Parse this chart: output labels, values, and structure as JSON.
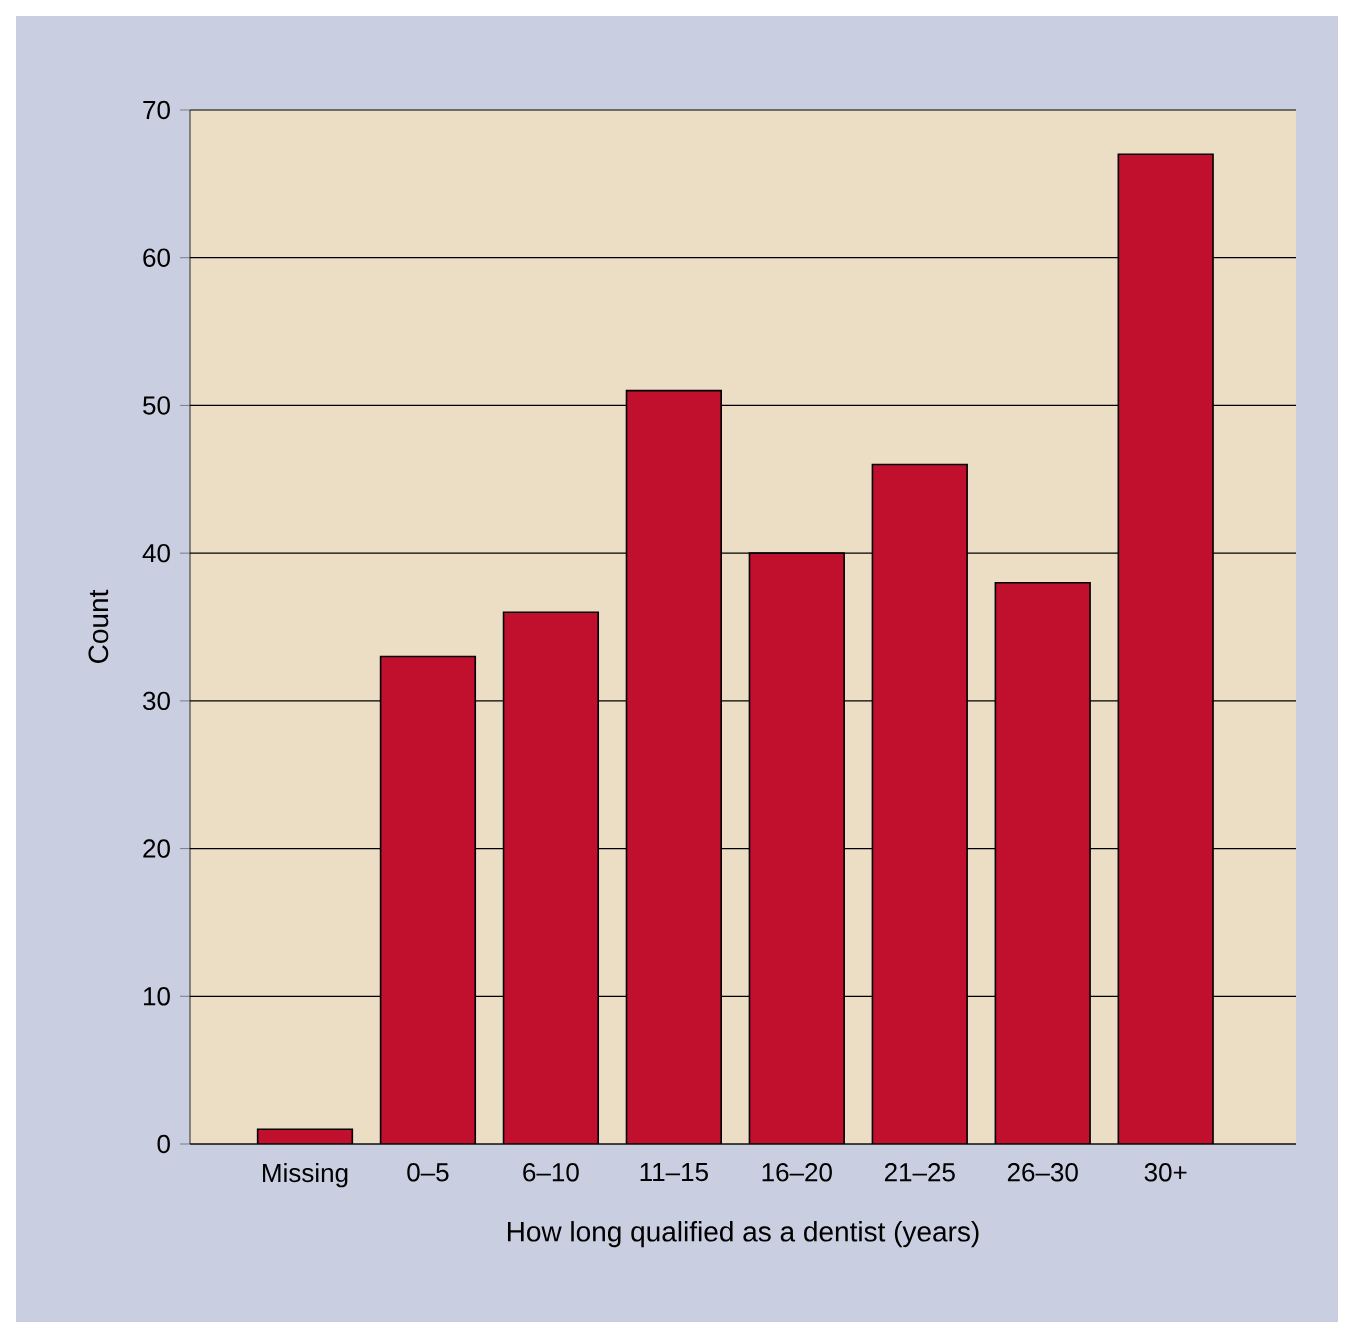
{
  "chart_data": {
    "type": "bar",
    "xlabel": "How long qualified as a dentist (years)",
    "ylabel": "Count",
    "categories": [
      "Missing",
      "0–5",
      "6–10",
      "11–15",
      "16–20",
      "21–25",
      "26–30",
      "30+"
    ],
    "values": [
      1,
      33,
      36,
      51,
      40,
      46,
      38,
      67
    ],
    "color": "#c0102e",
    "ylim": [
      0,
      70
    ],
    "yticks": [
      0,
      10,
      20,
      30,
      40,
      50,
      60,
      70
    ],
    "grid": "y"
  }
}
